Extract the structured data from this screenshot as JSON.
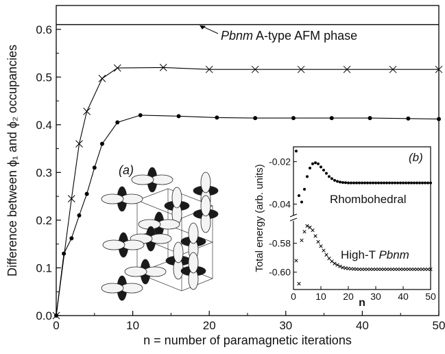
{
  "chart_data": [
    {
      "panel": "main",
      "type": "line",
      "xlabel": "n = number of paramagnetic iterations",
      "ylabel": "Difference between ϕ₁ and ϕ₂ occupancies",
      "xlim": [
        0,
        50
      ],
      "ylim": [
        0,
        0.65
      ],
      "xticks": [
        "0",
        "10",
        "20",
        "30",
        "40",
        "50"
      ],
      "yticks": [
        "0.0",
        "0.1",
        "0.2",
        "0.3",
        "0.4",
        "0.5",
        "0.6"
      ],
      "panel_label": "(a)",
      "reference_line": {
        "y": 0.61,
        "label_italic": "Pbnm",
        "label_rest": " A-type AFM phase"
      },
      "series": [
        {
          "marker": "x",
          "x": [
            0,
            2,
            3,
            4,
            6,
            8,
            14,
            20,
            26,
            32,
            38,
            44,
            50
          ],
          "y": [
            0.0,
            0.245,
            0.36,
            0.428,
            0.497,
            0.519,
            0.52,
            0.516,
            0.516,
            0.516,
            0.516,
            0.516,
            0.516
          ]
        },
        {
          "marker": "dot",
          "x": [
            0,
            1,
            2,
            3,
            4,
            5,
            6,
            8,
            11,
            16,
            21,
            26,
            31,
            36,
            41,
            46,
            50
          ],
          "y": [
            0.0,
            0.13,
            0.162,
            0.21,
            0.255,
            0.31,
            0.36,
            0.405,
            0.42,
            0.418,
            0.415,
            0.414,
            0.414,
            0.414,
            0.414,
            0.413,
            0.412
          ]
        }
      ]
    },
    {
      "panel": "inset",
      "type": "scatter",
      "panel_label": "(b)",
      "xlabel": "n",
      "ylabel": "Total energy (arb. units)",
      "xlim": [
        0,
        50
      ],
      "xticks": [
        "0",
        "10",
        "20",
        "30",
        "40",
        "50"
      ],
      "yticks_upper": [
        "-0.02",
        "-0.04"
      ],
      "yticks_lower": [
        "-0.58",
        "-0.60"
      ],
      "series": [
        {
          "name": "Rhombohedral",
          "marker": "dot",
          "x": [
            1,
            2,
            3,
            4,
            5,
            6,
            7,
            8,
            9,
            10,
            11,
            12,
            13,
            14,
            15,
            16,
            17,
            18,
            19,
            20,
            21,
            22,
            23,
            24,
            25,
            26,
            27,
            28,
            29,
            30,
            31,
            32,
            33,
            34,
            35,
            36,
            37,
            38,
            39,
            40,
            41,
            42,
            43,
            44,
            45,
            46,
            47,
            48,
            49,
            50
          ],
          "y": [
            -0.015,
            -0.036,
            -0.039,
            -0.033,
            -0.027,
            -0.023,
            -0.021,
            -0.0205,
            -0.021,
            -0.0225,
            -0.024,
            -0.0255,
            -0.027,
            -0.028,
            -0.0288,
            -0.0293,
            -0.0296,
            -0.0298,
            -0.0299,
            -0.03,
            -0.03,
            -0.03,
            -0.03,
            -0.03,
            -0.03,
            -0.03,
            -0.03,
            -0.03,
            -0.03,
            -0.03,
            -0.03,
            -0.03,
            -0.03,
            -0.03,
            -0.03,
            -0.03,
            -0.03,
            -0.03,
            -0.03,
            -0.03,
            -0.03,
            -0.03,
            -0.03,
            -0.03,
            -0.03,
            -0.03,
            -0.03,
            -0.03,
            -0.03,
            -0.03
          ]
        },
        {
          "name_plain": "High-T ",
          "name_italic": "Pbnm",
          "marker": "x",
          "x": [
            1,
            2,
            3,
            4,
            5,
            6,
            7,
            8,
            9,
            10,
            11,
            12,
            13,
            14,
            15,
            16,
            17,
            18,
            19,
            20,
            21,
            22,
            23,
            24,
            25,
            26,
            27,
            28,
            29,
            30,
            31,
            32,
            33,
            34,
            35,
            36,
            37,
            38,
            39,
            40,
            41,
            42,
            43,
            44,
            45,
            46,
            47,
            48,
            49,
            50
          ],
          "y": [
            -0.592,
            -0.608,
            -0.578,
            -0.572,
            -0.568,
            -0.569,
            -0.571,
            -0.575,
            -0.579,
            -0.582,
            -0.585,
            -0.588,
            -0.5905,
            -0.5925,
            -0.594,
            -0.595,
            -0.596,
            -0.5968,
            -0.5972,
            -0.5975,
            -0.5977,
            -0.5978,
            -0.5979,
            -0.598,
            -0.598,
            -0.598,
            -0.598,
            -0.598,
            -0.598,
            -0.598,
            -0.598,
            -0.598,
            -0.598,
            -0.598,
            -0.598,
            -0.598,
            -0.598,
            -0.598,
            -0.598,
            -0.598,
            -0.598,
            -0.598,
            -0.598,
            -0.598,
            -0.598,
            -0.598,
            -0.598,
            -0.598,
            -0.598,
            -0.598
          ]
        }
      ]
    }
  ]
}
